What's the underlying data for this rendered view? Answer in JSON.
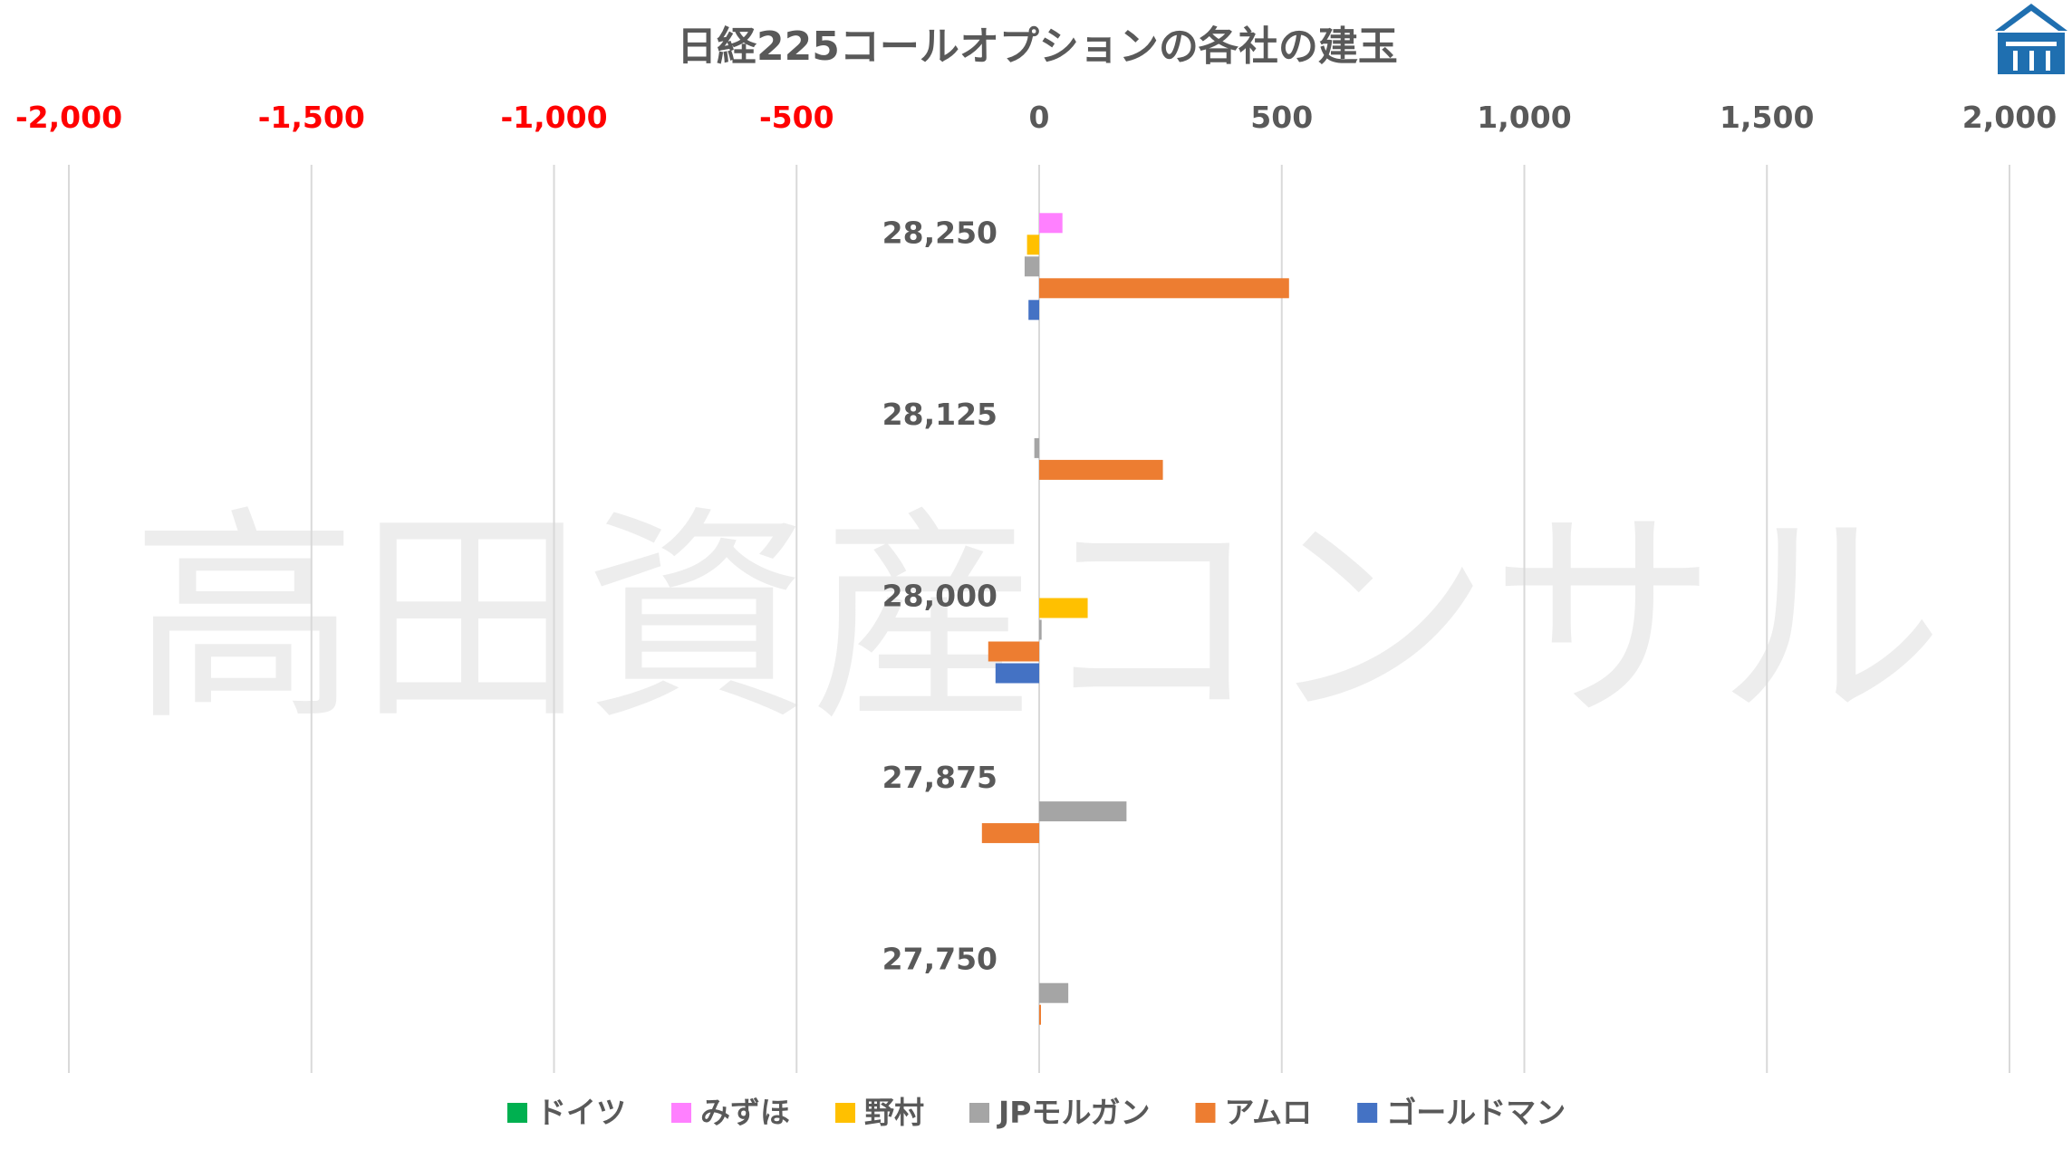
{
  "watermark": "高田資産コンサル",
  "chart_data": {
    "type": "bar",
    "orientation": "horizontal",
    "title": "日経225コールオプションの各社の建玉",
    "xlim": [
      -2000,
      2000
    ],
    "x_ticks": [
      {
        "value": -2000,
        "label": "-2,000"
      },
      {
        "value": -1500,
        "label": "-1,500"
      },
      {
        "value": -1000,
        "label": "-1,000"
      },
      {
        "value": -500,
        "label": "-500"
      },
      {
        "value": 0,
        "label": "0"
      },
      {
        "value": 500,
        "label": "500"
      },
      {
        "value": 1000,
        "label": "1,000"
      },
      {
        "value": 1500,
        "label": "1,500"
      },
      {
        "value": 2000,
        "label": "2,000"
      }
    ],
    "negative_tick_color": "#ff0000",
    "positive_tick_color": "#595959",
    "grid": true,
    "legend_position": "bottom",
    "categories": [
      "28,250",
      "28,125",
      "28,000",
      "27,875",
      "27,750"
    ],
    "series": [
      {
        "name": "ドイツ",
        "color": "#00b050",
        "values": [
          0,
          0,
          0,
          0,
          0
        ]
      },
      {
        "name": "みずほ",
        "color": "#ff80ff",
        "values": [
          48,
          0,
          0,
          0,
          0
        ]
      },
      {
        "name": "野村",
        "color": "#ffc000",
        "values": [
          -25,
          0,
          100,
          0,
          0
        ]
      },
      {
        "name": "JPモルガン",
        "color": "#a5a5a5",
        "values": [
          -30,
          -10,
          5,
          180,
          60
        ]
      },
      {
        "name": "アムロ",
        "color": "#ed7d31",
        "values": [
          515,
          255,
          -105,
          -118,
          3
        ]
      },
      {
        "name": "ゴールドマン",
        "color": "#4472c4",
        "values": [
          -22,
          0,
          -90,
          0,
          0
        ]
      }
    ]
  }
}
